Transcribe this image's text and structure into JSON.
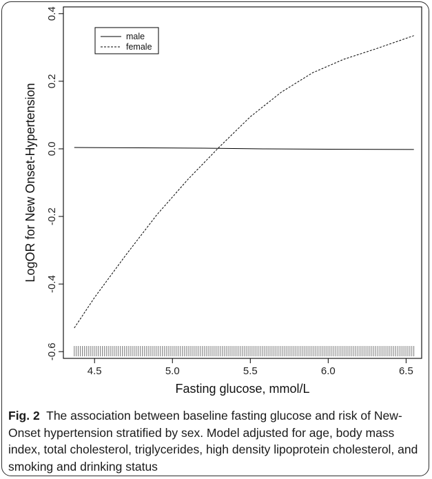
{
  "chart_data": {
    "type": "line",
    "xlabel": "Fasting glucose, mmol/L",
    "ylabel": "LogOR for New Onset-Hypertension",
    "xlim": [
      4.3,
      6.6
    ],
    "ylim": [
      -0.62,
      0.42
    ],
    "x_ticks": [
      "4.5",
      "5.0",
      "5.5",
      "6.0",
      "6.5"
    ],
    "y_ticks": [
      "-0.6",
      "-0.4",
      "-0.2",
      "0.0",
      "0.2",
      "0.4"
    ],
    "x_tick_values": [
      4.5,
      5.0,
      5.5,
      6.0,
      6.5
    ],
    "y_tick_values": [
      -0.6,
      -0.4,
      -0.2,
      0.0,
      0.2,
      0.4
    ],
    "legend_position": "top-left",
    "rug": true,
    "series": [
      {
        "name": "male",
        "line_style": "solid",
        "x": [
          4.37,
          4.8,
          5.2,
          5.6,
          6.0,
          6.55
        ],
        "y": [
          0.004,
          0.003,
          0.002,
          0.0,
          -0.001,
          -0.002
        ]
      },
      {
        "name": "female",
        "line_style": "dashed",
        "x": [
          4.37,
          4.5,
          4.7,
          4.9,
          5.1,
          5.3,
          5.5,
          5.7,
          5.9,
          6.1,
          6.3,
          6.55
        ],
        "y": [
          -0.53,
          -0.44,
          -0.315,
          -0.195,
          -0.09,
          0.005,
          0.095,
          0.168,
          0.225,
          0.265,
          0.295,
          0.335
        ]
      }
    ]
  },
  "caption": {
    "label": "Fig. 2",
    "text": "The association between baseline fasting glucose and risk of New-Onset hypertension stratified by sex. Model adjusted for age, body mass index, total cholesterol, triglycerides, high density lipoprotein cholesterol, and smoking and drinking status"
  }
}
